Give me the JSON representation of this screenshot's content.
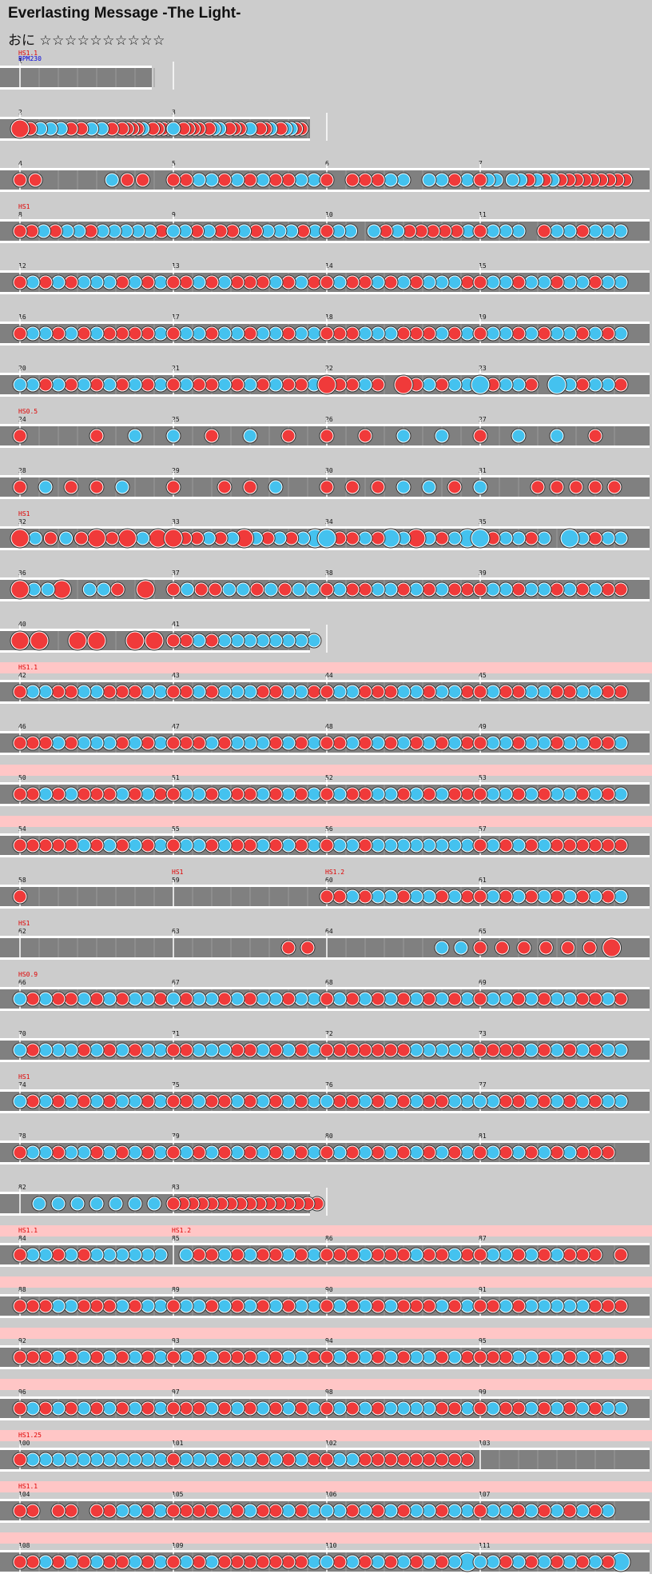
{
  "song": {
    "title": "Everlasting Message -The Light-",
    "difficulty": "おに",
    "stars": "☆☆☆☆☆☆☆☆☆☆"
  },
  "colors": {
    "background": "#cccccc",
    "lane": "#808080",
    "lane_hs_band": "#ffc6c6",
    "don": "#f03a3a",
    "ka": "#44c2ef",
    "barline": "#ffffff",
    "hs_text": "#e00000",
    "bpm_text": "#0000dd"
  },
  "chart_data": {
    "type": "rhythm-chart",
    "measures_per_row": 4,
    "rows": [
      {
        "labels": [
          {
            "type": "hs",
            "text": "HS1.1"
          },
          {
            "type": "bpm",
            "text": "BPM230"
          }
        ],
        "pink": false,
        "measures": [
          {
            "n": "1",
            "len": 1,
            "notes": ""
          }
        ]
      },
      {
        "labels": [],
        "pink": false,
        "measures": [
          {
            "n": "2",
            "len": 1,
            "notes": "D0d0k0k0k0d0d0k0k0d0ddddk0dddd"
          },
          {
            "n": "3",
            "len": 1,
            "notes": "k0dddd0dkk0ddd0k0ddk0dkkdd0000"
          }
        ]
      },
      {
        "labels": [],
        "pink": false,
        "measures": [
          {
            "n": "4",
            "len": 1,
            "notes": "dd0000kdd0"
          },
          {
            "n": "5",
            "len": 1,
            "notes": "ddkkdkdkddkk"
          },
          {
            "n": "6",
            "len": 1,
            "notes": "d0dddkk0kkdk"
          },
          {
            "n": "7",
            "len": 1,
            "notes": "dkk0kkdkdkddddddddd"
          }
        ]
      },
      {
        "labels": [
          {
            "type": "hs",
            "text": "HS1"
          }
        ],
        "pink": false,
        "measures": [
          {
            "n": "8",
            "len": 1,
            "notes": "ddkdkkdkkkkkd"
          },
          {
            "n": "9",
            "len": 1,
            "notes": "kkdkddkdkkkdk"
          },
          {
            "n": "10",
            "len": 1,
            "notes": "dkk0kdkdddddk"
          },
          {
            "n": "11",
            "len": 1,
            "notes": "dkkk0dkkdkkk"
          }
        ]
      },
      {
        "labels": [],
        "pink": false,
        "measures": [
          {
            "n": "12",
            "len": 1,
            "notes": "dkdkdkkkdkdk"
          },
          {
            "n": "13",
            "len": 1,
            "notes": "ddkdkdddkdkd"
          },
          {
            "n": "14",
            "len": 1,
            "notes": "dkddkdkdkkkd"
          },
          {
            "n": "15",
            "len": 1,
            "notes": "dkkdkkdkkdkk"
          }
        ]
      },
      {
        "labels": [],
        "pink": false,
        "measures": [
          {
            "n": "16",
            "len": 1,
            "notes": "dkkdkdkddddk"
          },
          {
            "n": "17",
            "len": 1,
            "notes": "dkkdkkdkkdkk"
          },
          {
            "n": "18",
            "len": 1,
            "notes": "dddkkkdddkdk"
          },
          {
            "n": "19",
            "len": 1,
            "notes": "dkkdkdkkdkdk"
          }
        ]
      },
      {
        "labels": [],
        "pink": false,
        "measures": [
          {
            "n": "20",
            "len": 1,
            "notes": "kkdkdkdkdkdk"
          },
          {
            "n": "21",
            "len": 1,
            "notes": "dkddkdkdkddk"
          },
          {
            "n": "22",
            "len": 1,
            "notes": "Dddkd0Ddkdkk"
          },
          {
            "n": "23",
            "len": 1,
            "notes": "Kdkkd0Kkdkkd"
          }
        ]
      },
      {
        "labels": [
          {
            "type": "hs",
            "text": "HS0.5"
          }
        ],
        "pink": false,
        "measures": [
          {
            "n": "24",
            "len": 1,
            "notes": "d0dk"
          },
          {
            "n": "25",
            "len": 1,
            "notes": "kdkd"
          },
          {
            "n": "26",
            "len": 1,
            "notes": "ddkk"
          },
          {
            "n": "27",
            "len": 1,
            "notes": "dkkd"
          }
        ]
      },
      {
        "labels": [],
        "pink": false,
        "measures": [
          {
            "n": "28",
            "len": 1,
            "notes": "dkddk0"
          },
          {
            "n": "29",
            "len": 1,
            "notes": "d0ddk0"
          },
          {
            "n": "30",
            "len": 1,
            "notes": "dddkkd"
          },
          {
            "n": "31",
            "len": 1,
            "notes": "k00ddddd"
          }
        ]
      },
      {
        "labels": [
          {
            "type": "hs",
            "text": "HS1"
          }
        ],
        "pink": false,
        "measures": [
          {
            "n": "32",
            "len": 1,
            "notes": "DkdkdDdDkD"
          },
          {
            "n": "33",
            "len": 1,
            "notes": "DddkdkDkdkdkK"
          },
          {
            "n": "34",
            "len": 1,
            "notes": "KddkdKkDkdkK"
          },
          {
            "n": "35",
            "len": 1,
            "notes": "Kdkkdk0Kkdkk"
          }
        ]
      },
      {
        "labels": [],
        "pink": false,
        "measures": [
          {
            "n": "36",
            "len": 1,
            "notes": "DkkD0kkd0D0"
          },
          {
            "n": "37",
            "len": 1,
            "notes": "dkddkkdkdkk"
          },
          {
            "n": "38",
            "len": 1,
            "notes": "dkddkkdkdkdd"
          },
          {
            "n": "39",
            "len": 1,
            "notes": "dkkdkkdkdkdd"
          }
        ]
      },
      {
        "labels": [],
        "pink": false,
        "measures": [
          {
            "n": "40",
            "len": 1,
            "notes": "DD0DD0DD"
          },
          {
            "n": "41",
            "len": 1,
            "notes": "ddkdkkkkkkkk"
          }
        ]
      },
      {
        "labels": [
          {
            "type": "hs",
            "text": "HS1.1"
          }
        ],
        "pink": true,
        "measures": [
          {
            "n": "42",
            "len": 1,
            "notes": "dkkddkkdddkk"
          },
          {
            "n": "43",
            "len": 1,
            "notes": "ddkdkkkddkkd"
          },
          {
            "n": "44",
            "len": 1,
            "notes": "dkkdddkkdkkd"
          },
          {
            "n": "45",
            "len": 1,
            "notes": "dkddkkddkkdd"
          }
        ]
      },
      {
        "labels": [],
        "pink": false,
        "measures": [
          {
            "n": "46",
            "len": 1,
            "notes": "dddkdkkkdkdk"
          },
          {
            "n": "47",
            "len": 1,
            "notes": "dddkdkkkdkdk"
          },
          {
            "n": "48",
            "len": 1,
            "notes": "ddkdkdkdkdkd"
          },
          {
            "n": "49",
            "len": 1,
            "notes": "dkkdkkdkkddk"
          }
        ]
      },
      {
        "labels": [],
        "pink": true,
        "measures": [
          {
            "n": "50",
            "len": 1,
            "notes": "ddkdkdddkdkd"
          },
          {
            "n": "51",
            "len": 1,
            "notes": "dkkdkddkdkdk"
          },
          {
            "n": "52",
            "len": 1,
            "notes": "dkddkkdkdkdd"
          },
          {
            "n": "53",
            "len": 1,
            "notes": "dkkdkdkkdkdk"
          }
        ]
      },
      {
        "labels": [],
        "pink": true,
        "measures": [
          {
            "n": "54",
            "len": 1,
            "notes": "dddddkdkdkdk"
          },
          {
            "n": "55",
            "len": 1,
            "notes": "dkkdkddkdkdk"
          },
          {
            "n": "56",
            "len": 1,
            "notes": "dkkdkkkkkkkk"
          },
          {
            "n": "57",
            "len": 1,
            "notes": "dkdkdkdddddd"
          }
        ]
      },
      {
        "labels": [
          {
            "type": "hs",
            "text": "HS1"
          },
          {
            "type": "hs",
            "text": "HS1.2"
          }
        ],
        "pink": false,
        "measures": [
          {
            "n": "58",
            "len": 1,
            "notes": "d0000000"
          },
          {
            "n": "59",
            "len": 1,
            "notes": "00000000"
          },
          {
            "n": "60",
            "len": 1,
            "notes": "ddkdkkdkkdkd"
          },
          {
            "n": "61",
            "len": 1,
            "notes": "dkdkdkdkdkdk"
          }
        ]
      },
      {
        "labels": [
          {
            "type": "hs",
            "text": "HS1"
          }
        ],
        "pink": false,
        "measures": [
          {
            "n": "62",
            "len": 1,
            "notes": "00000000"
          },
          {
            "n": "63",
            "len": 1,
            "notes": "000000dd"
          },
          {
            "n": "64",
            "len": 1,
            "notes": "000000kk"
          },
          {
            "n": "65",
            "len": 1,
            "notes": "ddddddD"
          }
        ]
      },
      {
        "labels": [
          {
            "type": "hs",
            "text": "HS0.9"
          }
        ],
        "pink": false,
        "measures": [
          {
            "n": "66",
            "len": 1,
            "notes": "kdkddkdkdkkd"
          },
          {
            "n": "67",
            "len": 1,
            "notes": "kdkkdkdkkdkk"
          },
          {
            "n": "68",
            "len": 1,
            "notes": "dkdkdkdkdkdk"
          },
          {
            "n": "69",
            "len": 1,
            "notes": "dkkdkdkkddkd"
          }
        ]
      },
      {
        "labels": [],
        "pink": false,
        "measures": [
          {
            "n": "70",
            "len": 1,
            "notes": "kdkkkdkdkdkk"
          },
          {
            "n": "71",
            "len": 1,
            "notes": "ddkkkddkdkdk"
          },
          {
            "n": "72",
            "len": 1,
            "notes": "dddddddkkkkk"
          },
          {
            "n": "73",
            "len": 1,
            "notes": "ddddkdkdkdkk"
          }
        ]
      },
      {
        "labels": [
          {
            "type": "hs",
            "text": "HS1"
          }
        ],
        "pink": false,
        "measures": [
          {
            "n": "74",
            "len": 1,
            "notes": "kdkdkdkdkkdk"
          },
          {
            "n": "75",
            "len": 1,
            "notes": "ddkddkdkdkdk"
          },
          {
            "n": "76",
            "len": 1,
            "notes": "kddkdkdkddkk"
          },
          {
            "n": "77",
            "len": 1,
            "notes": "kkddkdkdkdkk"
          }
        ]
      },
      {
        "labels": [],
        "pink": false,
        "measures": [
          {
            "n": "78",
            "len": 1,
            "notes": "dkkdkkdkdkdk"
          },
          {
            "n": "79",
            "len": 1,
            "notes": "dkdkdkdkdkdk"
          },
          {
            "n": "80",
            "len": 1,
            "notes": "dkdkdkdkdkdk"
          },
          {
            "n": "81",
            "len": 1,
            "notes": "dkdkdkdkddd0"
          }
        ]
      },
      {
        "labels": [],
        "pink": false,
        "measures": [
          {
            "n": "82",
            "len": 1,
            "notes": "0kkkkkkk"
          },
          {
            "n": "83",
            "len": 1,
            "notes": "dddddddddddddddd"
          }
        ]
      },
      {
        "labels": [
          {
            "type": "hs",
            "text": "HS1.1"
          },
          {
            "type": "hs",
            "text": "HS1.2"
          }
        ],
        "pink": true,
        "measures": [
          {
            "n": "84",
            "len": 1,
            "notes": "dkkdkdkkkkkk"
          },
          {
            "n": "85",
            "len": 1,
            "notes": "0kddkdkddkdk"
          },
          {
            "n": "86",
            "len": 1,
            "notes": "dddkdddkddkd"
          },
          {
            "n": "87",
            "len": 1,
            "notes": "dkkdkdkddd0d"
          }
        ]
      },
      {
        "labels": [],
        "pink": true,
        "measures": [
          {
            "n": "88",
            "len": 1,
            "notes": "dddkkdddkdkk"
          },
          {
            "n": "89",
            "len": 1,
            "notes": "dkkdkdkdkdkk"
          },
          {
            "n": "90",
            "len": 1,
            "notes": "dkdkdkdddkdk"
          },
          {
            "n": "91",
            "len": 1,
            "notes": "ddkdkkkkkddd"
          }
        ]
      },
      {
        "labels": [],
        "pink": true,
        "measures": [
          {
            "n": "92",
            "len": 1,
            "notes": "dddkdkdkdkdk"
          },
          {
            "n": "93",
            "len": 1,
            "notes": "dkdkdddkdkkd"
          },
          {
            "n": "94",
            "len": 1,
            "notes": "dkdkdkdkkdkd"
          },
          {
            "n": "95",
            "len": 1,
            "notes": "dddkkdkdkdkd"
          }
        ]
      },
      {
        "labels": [],
        "pink": true,
        "measures": [
          {
            "n": "96",
            "len": 1,
            "notes": "dkdkdkdkdkdk"
          },
          {
            "n": "97",
            "len": 1,
            "notes": "dddkdkdkdkdk"
          },
          {
            "n": "98",
            "len": 1,
            "notes": "dkdkdkkkkddk"
          },
          {
            "n": "99",
            "len": 1,
            "notes": "dkddkdkdkdkk"
          }
        ]
      },
      {
        "labels": [
          {
            "type": "hs",
            "text": "HS1.25"
          }
        ],
        "pink": true,
        "measures": [
          {
            "n": "100",
            "len": 1,
            "notes": "dkkkkkkkkkkk"
          },
          {
            "n": "101",
            "len": 1,
            "notes": "dkkkdkkdkdkd"
          },
          {
            "n": "102",
            "len": 1,
            "notes": "dkkddddddddd"
          },
          {
            "n": "103",
            "len": 1,
            "notes": "00000000"
          }
        ]
      },
      {
        "labels": [
          {
            "type": "hs",
            "text": "HS1.1"
          }
        ],
        "pink": true,
        "measures": [
          {
            "n": "104",
            "len": 1,
            "notes": "dd0dd0ddkkdk"
          },
          {
            "n": "105",
            "len": 1,
            "notes": "ddddkdkddkdk"
          },
          {
            "n": "106",
            "len": 1,
            "notes": "kkdkdkdkkdkk"
          },
          {
            "n": "107",
            "len": 1,
            "notes": "dkkdkdkdkdk0"
          }
        ]
      },
      {
        "labels": [],
        "pink": true,
        "measures": [
          {
            "n": "108",
            "len": 1,
            "notes": "ddkdkdkddkdk"
          },
          {
            "n": "109",
            "len": 1,
            "notes": "dkdkdddddddk"
          },
          {
            "n": "110",
            "len": 1,
            "notes": "kdkdkdkdkdkK"
          },
          {
            "n": "111",
            "len": 1,
            "notes": "kkdkdkdkdkdK"
          }
        ]
      }
    ]
  }
}
